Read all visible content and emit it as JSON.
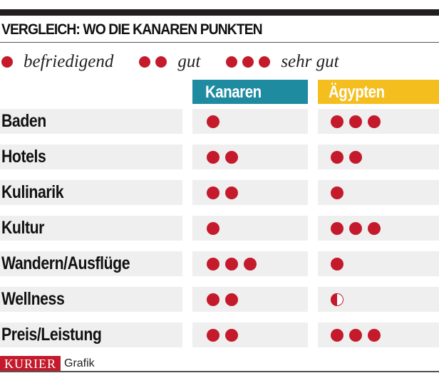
{
  "title": "VERGLEICH: WO DIE KANAREN PUNKTEN",
  "legend": [
    {
      "dots": 1,
      "label": "befriedigend"
    },
    {
      "dots": 2,
      "label": "gut"
    },
    {
      "dots": 3,
      "label": "sehr gut"
    }
  ],
  "colors": {
    "dot": "#c41a2b",
    "kanaren": "#1f8ba1",
    "aegypten": "#f5be1f",
    "row_bg": "#efeff0"
  },
  "chart_data": {
    "type": "table",
    "categories": [
      "Baden",
      "Hotels",
      "Kulinarik",
      "Kultur",
      "Wandern/Ausflüge",
      "Wellness",
      "Preis/Leistung"
    ],
    "series": [
      {
        "name": "Kanaren",
        "values": [
          1,
          2,
          2,
          1,
          3,
          2,
          2
        ]
      },
      {
        "name": "Ägypten",
        "values": [
          3,
          2,
          1,
          3,
          1,
          0.5,
          3
        ]
      }
    ]
  },
  "footer": {
    "logo": "KURIER",
    "label": "Grafik"
  }
}
